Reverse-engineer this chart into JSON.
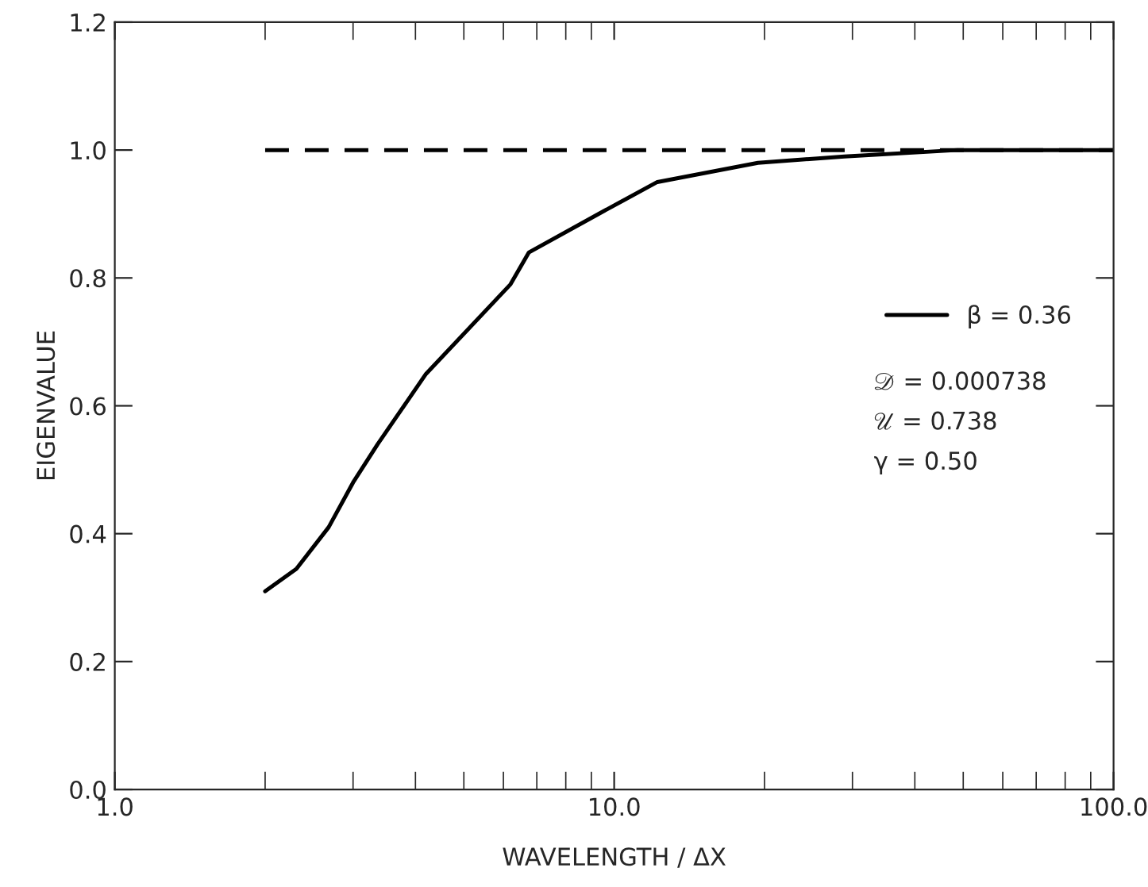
{
  "chart_data": {
    "type": "line",
    "xlabel": "WAVELENGTH / ΔX",
    "ylabel": "EIGENVALUE",
    "log": "x",
    "xlim": [
      1,
      100
    ],
    "xticks": [
      {
        "value": 1,
        "label": "1.0"
      },
      {
        "value": 10,
        "label": "10.0"
      },
      {
        "value": 100,
        "label": "100.0"
      }
    ],
    "ylim": [
      0,
      1.2
    ],
    "yticks": [
      {
        "value": 0,
        "label": "0.0"
      },
      {
        "value": 0.2,
        "label": "0.2"
      },
      {
        "value": 0.4,
        "label": "0.4"
      },
      {
        "value": 0.6,
        "label": "0.6"
      },
      {
        "value": 0.8,
        "label": "0.8"
      },
      {
        "value": 1.0,
        "label": "1.0"
      },
      {
        "value": 1.2,
        "label": "1.2"
      }
    ],
    "series": [
      {
        "name": "β = 0.36",
        "color": "#000000",
        "line_style": "solid",
        "x": [
          2.0,
          2.31,
          2.68,
          3.0,
          3.36,
          4.2,
          6.2,
          6.75,
          9.3,
          12.2,
          19.4,
          28.9,
          48.7,
          100
        ],
        "values": [
          0.31,
          0.345,
          0.41,
          0.48,
          0.54,
          0.65,
          0.79,
          0.84,
          0.9,
          0.95,
          0.98,
          0.99,
          1.0,
          1.0
        ]
      },
      {
        "color": "#000000",
        "line_style": "dashed",
        "x": [
          2,
          100
        ],
        "values": [
          1.0,
          1.0
        ]
      }
    ],
    "annotations": [
      "𝒟 = 0.000738",
      "𝒰 = 0.738",
      "γ = 0.50"
    ],
    "legend": "right",
    "grid": false,
    "marker": "none"
  }
}
